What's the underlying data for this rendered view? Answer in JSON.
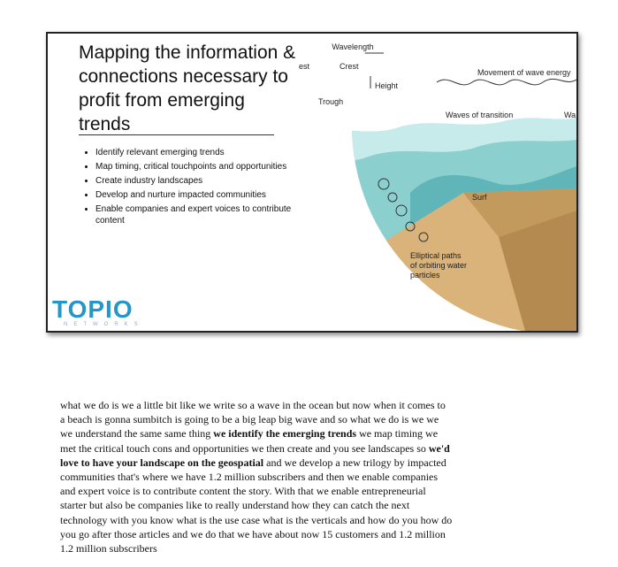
{
  "slide": {
    "title_lines": [
      "Mapping the information &",
      "connections necessary to",
      "profit from emerging",
      "trends"
    ],
    "bullets": [
      "Identify relevant emerging trends",
      "Map timing, critical touchpoints and opportunities",
      "Create industry landscapes",
      "Develop and nurture impacted communities",
      "Enable companies and expert voices to contribute content"
    ],
    "logo": {
      "name": "TOPIO",
      "sub": "NETWORKS"
    },
    "illustration": {
      "wavelength": "Wavelength",
      "crest_left": "est",
      "crest": "Crest",
      "height": "Height",
      "trough": "Trough",
      "movement": "Movement of wave energy",
      "transition": "Waves of transition",
      "wa": "Wa",
      "surf": "Surf",
      "elliptical_lines": [
        "Elliptical paths",
        "of orbiting water",
        "particles"
      ]
    }
  },
  "transcript": {
    "segments": [
      {
        "text": "what we do is we a little bit like we write so a wave in the ocean but now when it comes to a beach is gonna sumbitch is going to be a big leap big wave and so what we do is we we we understand the same same thing ",
        "bold": false
      },
      {
        "text": "we identify the emerging trends",
        "bold": true
      },
      {
        "text": " we map timing we met the critical touch cons and opportunities we then create and you see landscapes so ",
        "bold": false
      },
      {
        "text": "we'd love to have your landscape on the geospatial",
        "bold": true
      },
      {
        "text": " and we develop a new trilogy by impacted communities that's where we have 1.2 million subscribers and then we enable companies and expert voice is to contribute content the story. With that we enable entrepreneurial starter but also be companies like to really understand how they can catch the next technology with you know what is the use case what is the verticals and how do you how do you go after those articles and we do that we have about now 15 customers and 1.2 million 1.2 million subscribers",
        "bold": false
      }
    ]
  }
}
